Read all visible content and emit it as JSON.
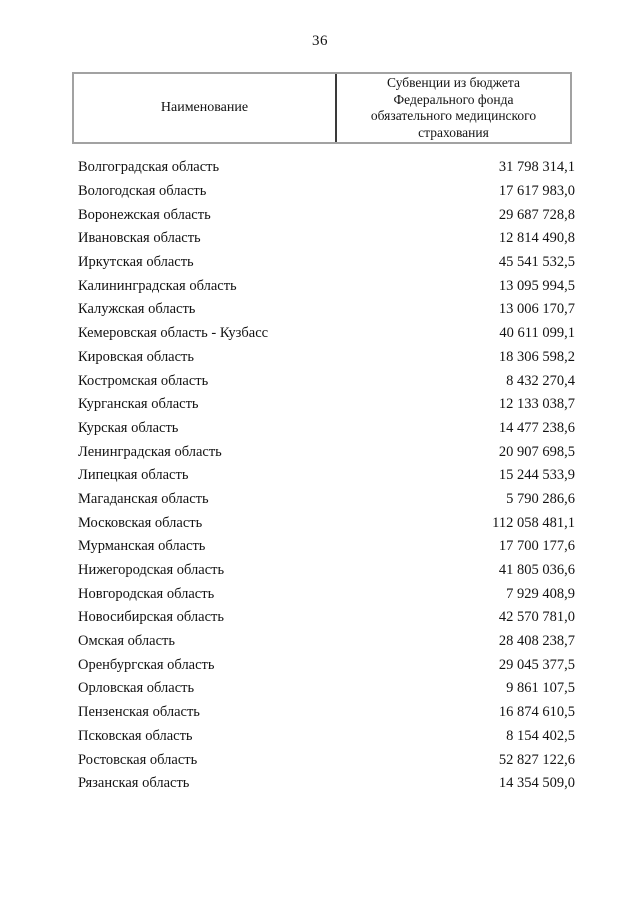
{
  "page": {
    "number": "36",
    "background_color": "#ffffff",
    "text_color": "#131313",
    "table_border_color": "#a2a2a2",
    "table_divider_color": "#3a3a3a"
  },
  "table": {
    "header": {
      "name_column": "Наименование",
      "value_column": "Субвенции из бюджета Федерального фонда обязательного медицинского страхования",
      "value_lines": [
        "Субвенции из бюджета",
        "Федерального фонда",
        "обязательного медицинского",
        "страхования"
      ]
    },
    "rows": [
      {
        "name": "Волгоградская область",
        "value": "31 798 314,1"
      },
      {
        "name": "Вологодская область",
        "value": "17 617 983,0"
      },
      {
        "name": "Воронежская область",
        "value": "29 687 728,8"
      },
      {
        "name": "Ивановская область",
        "value": "12 814 490,8"
      },
      {
        "name": "Иркутская область",
        "value": "45 541 532,5"
      },
      {
        "name": "Калининградская область",
        "value": "13 095 994,5"
      },
      {
        "name": "Калужская область",
        "value": "13 006 170,7"
      },
      {
        "name": "Кемеровская область - Кузбасс",
        "value": "40 611 099,1"
      },
      {
        "name": "Кировская область",
        "value": "18 306 598,2"
      },
      {
        "name": "Костромская область",
        "value": "8 432 270,4"
      },
      {
        "name": "Курганская область",
        "value": "12 133 038,7"
      },
      {
        "name": "Курская область",
        "value": "14 477 238,6"
      },
      {
        "name": "Ленинградская область",
        "value": "20 907 698,5"
      },
      {
        "name": "Липецкая область",
        "value": "15 244 533,9"
      },
      {
        "name": "Магаданская область",
        "value": "5 790 286,6"
      },
      {
        "name": "Московская область",
        "value": "112 058 481,1"
      },
      {
        "name": "Мурманская область",
        "value": "17 700 177,6"
      },
      {
        "name": "Нижегородская область",
        "value": "41 805 036,6"
      },
      {
        "name": "Новгородская область",
        "value": "7 929 408,9"
      },
      {
        "name": "Новосибирская область",
        "value": "42 570 781,0"
      },
      {
        "name": "Омская область",
        "value": "28 408 238,7"
      },
      {
        "name": "Оренбургская область",
        "value": "29 045 377,5"
      },
      {
        "name": "Орловская область",
        "value": "9 861 107,5"
      },
      {
        "name": "Пензенская область",
        "value": "16 874 610,5"
      },
      {
        "name": "Псковская область",
        "value": "8 154 402,5"
      },
      {
        "name": "Ростовская область",
        "value": "52 827 122,6"
      },
      {
        "name": "Рязанская область",
        "value": "14 354 509,0"
      }
    ]
  }
}
